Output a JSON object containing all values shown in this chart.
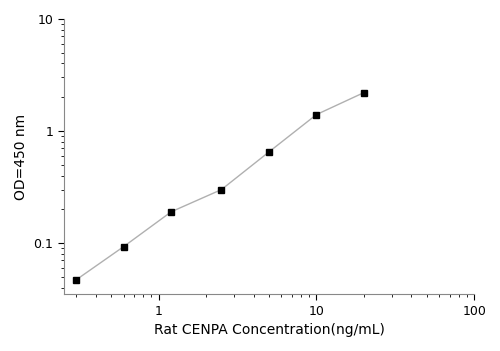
{
  "x": [
    0.3,
    0.6,
    1.2,
    2.5,
    5.0,
    10.0,
    20.0
  ],
  "y": [
    0.047,
    0.093,
    0.19,
    0.3,
    0.65,
    1.4,
    2.2
  ],
  "xlim": [
    0.25,
    100
  ],
  "ylim": [
    0.035,
    10
  ],
  "xlabel": "Rat CENPA Concentration(ng/mL)",
  "ylabel": "OD=450 nm",
  "marker": "s",
  "marker_color": "black",
  "marker_size": 5,
  "line_color": "#b0b0b0",
  "line_width": 1.0,
  "background_color": "#ffffff",
  "xtick_major": [
    1,
    10,
    100
  ],
  "xtick_major_labels": [
    "1",
    "10",
    "100"
  ],
  "ytick_major": [
    0.1,
    1,
    10
  ],
  "ytick_major_labels": [
    "0.1",
    "1",
    "10"
  ],
  "spine_color": "#888888",
  "tick_labelsize": 9
}
